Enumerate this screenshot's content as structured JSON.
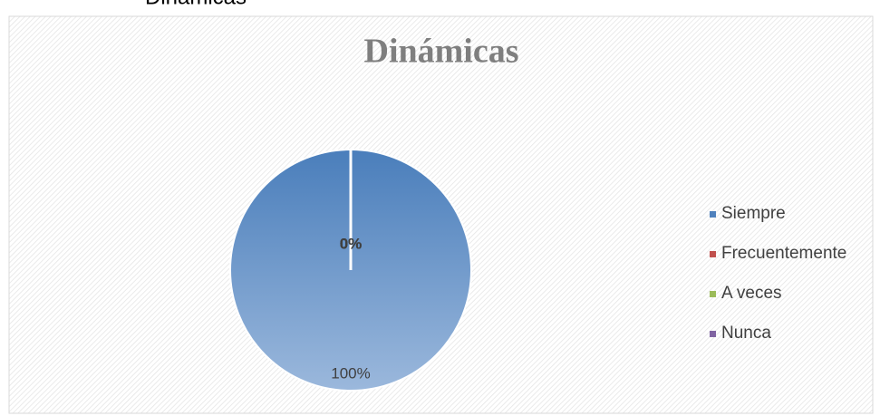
{
  "caption": "Dinámicas",
  "chart_data": {
    "type": "pie",
    "title": "Dinámicas",
    "categories": [
      "Siempre",
      "Frecuentemente",
      "A veces",
      "Nunca"
    ],
    "values": [
      100,
      0,
      0,
      0
    ],
    "value_labels": [
      "100%",
      "0%",
      "0%",
      "0%"
    ],
    "colors": [
      "#4f81bd",
      "#c0504d",
      "#9bbb59",
      "#8064a2"
    ],
    "legend": "right"
  }
}
